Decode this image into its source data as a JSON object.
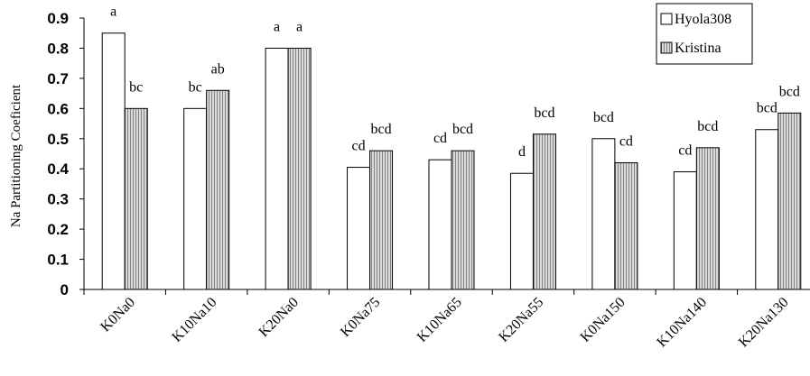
{
  "chart_data": {
    "type": "bar",
    "title": "",
    "xlabel": "",
    "ylabel": "Na Partitioning Coeficient",
    "ylim": [
      0,
      0.9
    ],
    "yticks": [
      "0",
      "0.1",
      "0.2",
      "0.3",
      "0.4",
      "0.5",
      "0.6",
      "0.7",
      "0.8",
      "0.9"
    ],
    "categories": [
      "K0Na0",
      "K10Na10",
      "K20Na0",
      "K0Na75",
      "K10Na65",
      "K20Na55",
      "K0Na150",
      "K10Na140",
      "K20Na130"
    ],
    "series": [
      {
        "name": "Hyola308",
        "fill": "#ffffff",
        "values": [
          0.85,
          0.6,
          0.8,
          0.405,
          0.43,
          0.385,
          0.5,
          0.39,
          0.53
        ],
        "labels": [
          "a",
          "bc",
          "a",
          "cd",
          "cd",
          "d",
          "bcd",
          "cd",
          "bcd"
        ]
      },
      {
        "name": "Kristina",
        "fill": "#d0d0d0",
        "values": [
          0.6,
          0.66,
          0.8,
          0.46,
          0.46,
          0.515,
          0.42,
          0.47,
          0.585
        ],
        "labels": [
          "bc",
          "ab",
          "a",
          "bcd",
          "bcd",
          "bcd",
          "cd",
          "bcd",
          "bcd"
        ]
      }
    ],
    "legend": {
      "position": "top-right"
    },
    "grid": false
  }
}
